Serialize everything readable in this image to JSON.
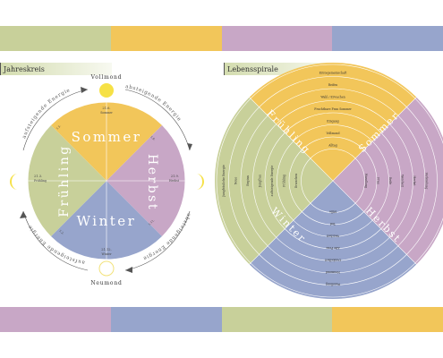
{
  "colors": {
    "summer": "#f2c65a",
    "autumn": "#c8a7c6",
    "winter": "#97a5cc",
    "spring": "#c8d09a",
    "sun": "#f6e146",
    "band_top": [
      "#c8d09a",
      "#f2c65a",
      "#c8a7c6",
      "#97a5cc"
    ],
    "band_bottom": [
      "#c8a7c6",
      "#97a5cc",
      "#c8d09a",
      "#f2c65a"
    ]
  },
  "left": {
    "title": "Jahreskreis",
    "full_moon": "Vollmond",
    "new_moon": "Neumond",
    "descending": "absteigende Energie",
    "ascending": "aufsteigende Energie",
    "seasons": {
      "summer": "Sommer",
      "autumn": "Herbst",
      "winter": "Winter",
      "spring": "Frühling"
    },
    "dates": {
      "summer": "21.6.",
      "summer_sub": "Sommer",
      "autumn": "21.9.",
      "autumn_sub": "Herbst",
      "winter": "21.12.",
      "winter_sub": "Winter",
      "spring": "21.3.",
      "spring_sub": "Frühling",
      "small_tl": "1.5.",
      "small_tr": "1.8.",
      "small_br": "1.11.",
      "small_bl": "1.2."
    }
  },
  "right": {
    "title": "Lebensspirale",
    "seasons": {
      "summer": "Sommer",
      "autumn": "Herbst",
      "winter": "Winter",
      "spring": "Frühling"
    },
    "summer_rings": [
      "Erntegemeinschaft",
      "Reifen",
      "Wahl / Erwachen",
      "Fruchtbare Frau Sommer",
      "Eingang",
      "Vollmond",
      "Alltag"
    ],
    "autumn_rings": [
      "Wandlung",
      "Frau",
      "Reife",
      "Weisheit",
      "Herbst",
      "Verbindung"
    ],
    "winter_rings": [
      "Stille",
      "Tod",
      "Weisheit",
      "Alte Frau",
      "Dunkelheit",
      "Neumond",
      "Wandlung"
    ],
    "spring_rings": [
      "Jungfräuliche Energie",
      "Neue",
      "Beginn",
      "Jungfrau",
      "aufsteigende Energie",
      "Frühling",
      "Erwachen"
    ]
  }
}
